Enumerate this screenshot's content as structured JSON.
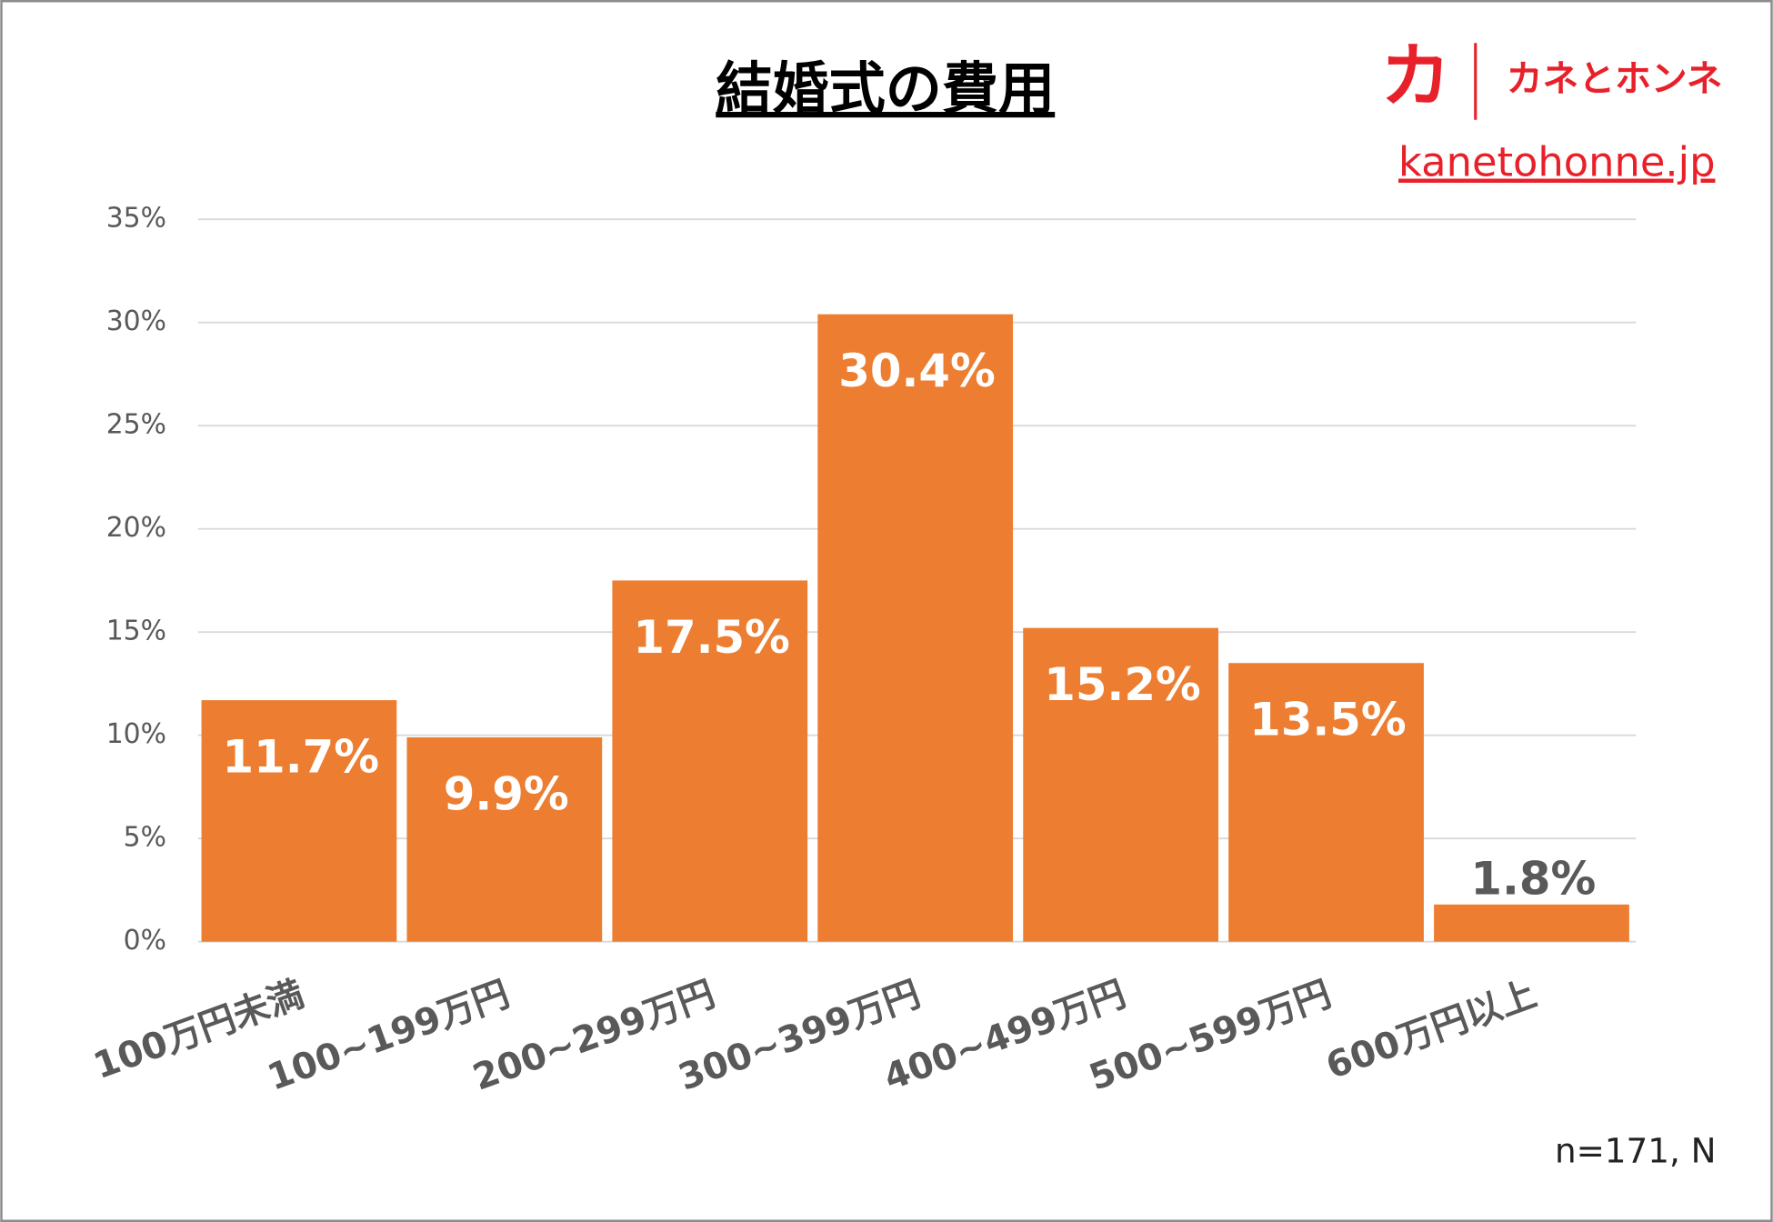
{
  "chart_data": {
    "type": "bar",
    "title": "結婚式の費用",
    "categories": [
      "100万円未満",
      "100~199万円",
      "200~299万円",
      "300~399万円",
      "400~499万円",
      "500~599万円",
      "600万円以上"
    ],
    "values": [
      11.7,
      9.9,
      17.5,
      30.4,
      15.2,
      13.5,
      1.8
    ],
    "value_labels": [
      "11.7%",
      "9.9%",
      "17.5%",
      "30.4%",
      "15.2%",
      "13.5%",
      "1.8%"
    ],
    "color": "#ed7d31",
    "ylim": [
      0,
      35
    ],
    "yticks": [
      {
        "value": 0,
        "label": "0%"
      },
      {
        "value": 5,
        "label": "5%"
      },
      {
        "value": 10,
        "label": "10%"
      },
      {
        "value": 15,
        "label": "15%"
      },
      {
        "value": 20,
        "label": "20%"
      },
      {
        "value": 25,
        "label": "25%"
      },
      {
        "value": 30,
        "label": "30%"
      },
      {
        "value": 35,
        "label": "35%"
      }
    ],
    "grid": true,
    "brand_mark": "カ",
    "brand_name": "カネとホンネ",
    "brand_url": "kanetohonne.jp",
    "note": "n=171, N"
  }
}
